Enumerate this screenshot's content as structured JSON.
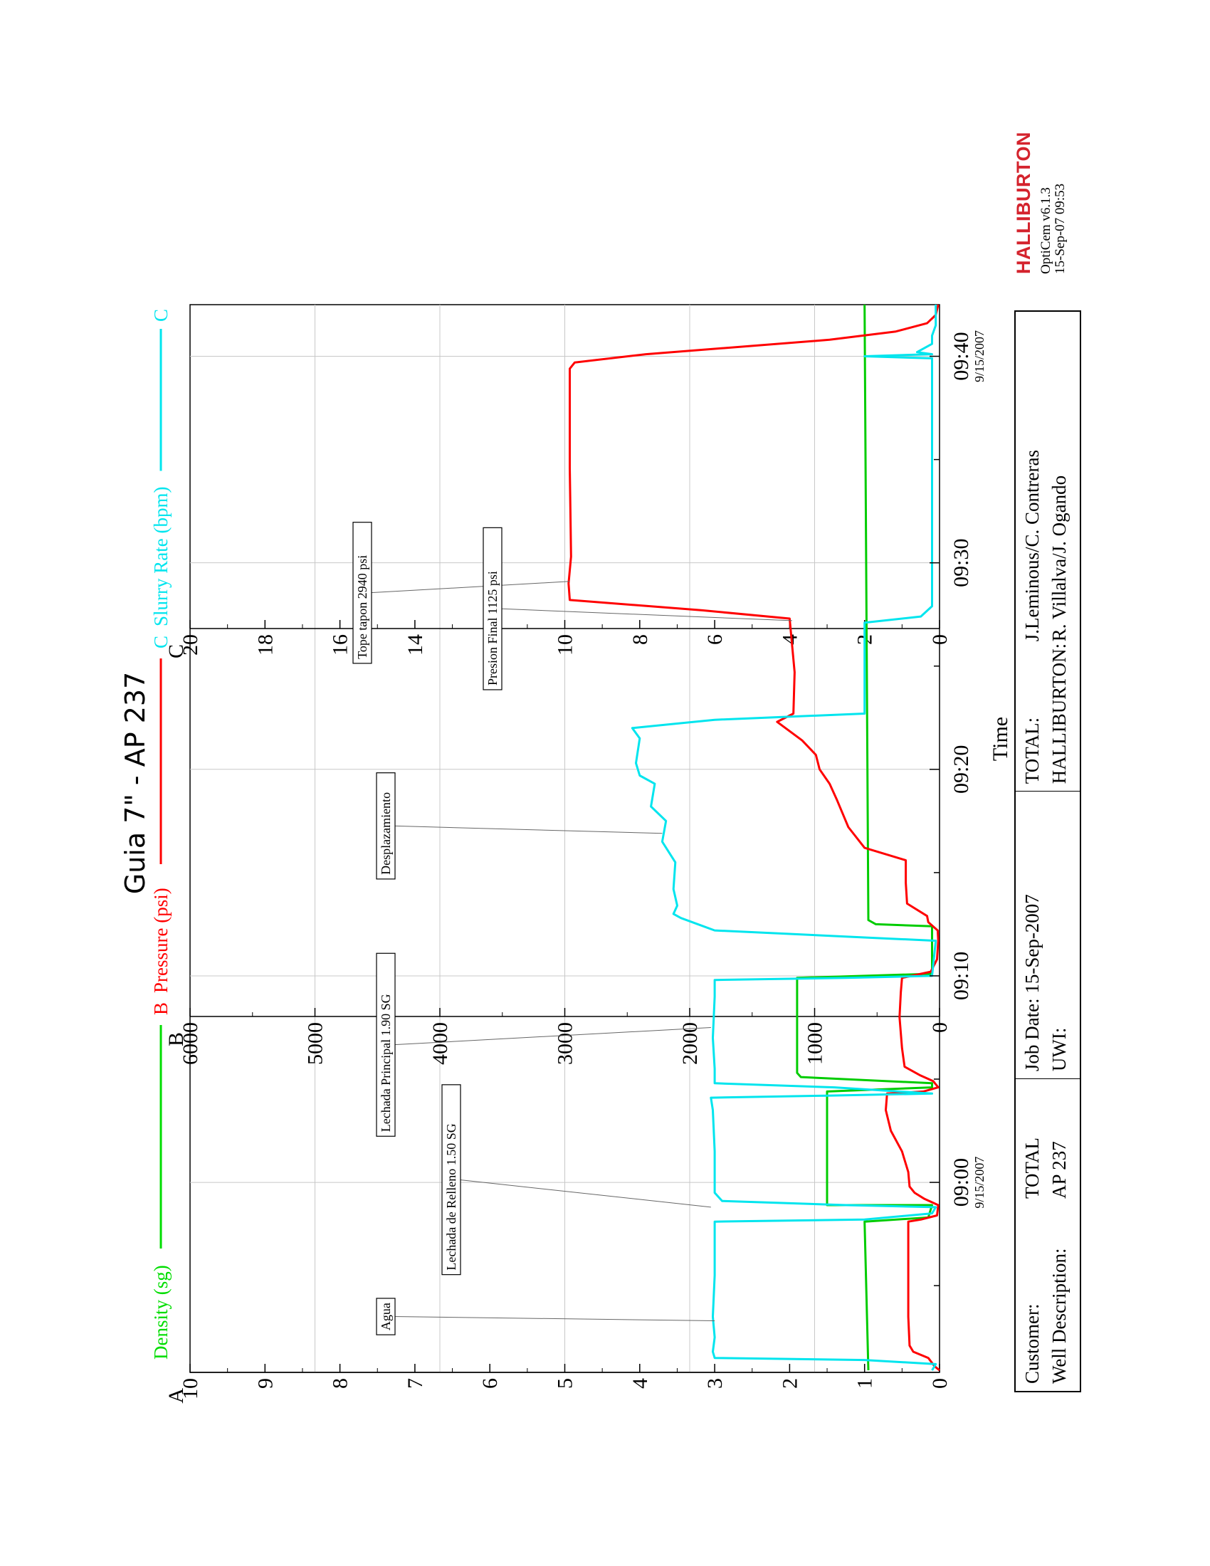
{
  "chart_data": {
    "type": "line",
    "title": "Guia 7\" - AP 237",
    "xlabel": "Time",
    "x_ticks": [
      {
        "label": "09:00",
        "sub": "9/15/2007",
        "min": 0
      },
      {
        "label": "09:10",
        "sub": "",
        "min": 10
      },
      {
        "label": "09:20",
        "sub": "",
        "min": 20
      },
      {
        "label": "09:30",
        "sub": "",
        "min": 30
      },
      {
        "label": "09:40",
        "sub": "9/15/2007",
        "min": 40
      }
    ],
    "xlim_minutes": [
      -9.2,
      42.5
    ],
    "axes": [
      {
        "letter": "A",
        "name": "Density (sg)",
        "color": "#00dd00",
        "range": [
          0,
          10
        ],
        "ticks": [
          "0",
          "1",
          "2",
          "3",
          "4",
          "5",
          "6",
          "7",
          "8",
          "9",
          "10"
        ]
      },
      {
        "letter": "B",
        "name": "Pressure (psi)",
        "color": "#ff0000",
        "range": [
          0,
          6000
        ],
        "ticks": [
          "0",
          "1000",
          "2000",
          "3000",
          "4000",
          "5000",
          "6000"
        ]
      },
      {
        "letter": "C",
        "name": "Slurry Rate (bpm)",
        "color": "#00e5ee",
        "range": [
          0,
          20
        ],
        "ticks": [
          "0",
          "2",
          "4",
          "6",
          "8",
          "10",
          "12",
          "14",
          "16",
          "18",
          "20"
        ]
      }
    ],
    "series": [
      {
        "name": "Density (sg)",
        "axis": "A",
        "color": "#00cc00",
        "points": [
          [
            -9.1,
            0.95
          ],
          [
            -1.9,
            1.0
          ],
          [
            -1.7,
            0.15
          ],
          [
            -1.1,
            0.1
          ],
          [
            -1.1,
            1.5
          ],
          [
            -0.6,
            1.5
          ],
          [
            4.4,
            1.5
          ],
          [
            4.6,
            0.1
          ],
          [
            4.8,
            0.1
          ],
          [
            5.1,
            1.85
          ],
          [
            5.3,
            1.9
          ],
          [
            9.9,
            1.9
          ],
          [
            10.1,
            0.1
          ],
          [
            12.4,
            0.1
          ],
          [
            12.5,
            0.85
          ],
          [
            12.7,
            0.95
          ],
          [
            42.5,
            1.0
          ]
        ]
      },
      {
        "name": "Pressure (psi)",
        "axis": "B",
        "color": "#ff0000",
        "points": [
          [
            -9.1,
            0
          ],
          [
            -8.9,
            40
          ],
          [
            -8.5,
            90
          ],
          [
            -8.2,
            210
          ],
          [
            -7.9,
            240
          ],
          [
            -6.5,
            250
          ],
          [
            -4.2,
            250
          ],
          [
            -3.5,
            250
          ],
          [
            -1.9,
            250
          ],
          [
            -1.8,
            150
          ],
          [
            -1.6,
            20
          ],
          [
            -1.1,
            10
          ],
          [
            -0.8,
            120
          ],
          [
            -0.5,
            200
          ],
          [
            -0.2,
            240
          ],
          [
            0.5,
            250
          ],
          [
            1.5,
            300
          ],
          [
            2.5,
            390
          ],
          [
            3.5,
            430
          ],
          [
            4.3,
            420
          ],
          [
            4.4,
            130
          ],
          [
            4.6,
            10
          ],
          [
            4.9,
            50
          ],
          [
            5.2,
            160
          ],
          [
            5.6,
            280
          ],
          [
            6.5,
            300
          ],
          [
            8.0,
            320
          ],
          [
            9.2,
            310
          ],
          [
            9.9,
            300
          ],
          [
            10.2,
            70
          ],
          [
            10.8,
            20
          ],
          [
            11.7,
            10
          ],
          [
            12.2,
            15
          ],
          [
            12.6,
            90
          ],
          [
            12.9,
            100
          ],
          [
            13.5,
            260
          ],
          [
            14.5,
            270
          ],
          [
            15.6,
            270
          ],
          [
            16.2,
            600
          ],
          [
            17.2,
            730
          ],
          [
            18.5,
            820
          ],
          [
            19.3,
            880
          ],
          [
            20.0,
            960
          ],
          [
            20.7,
            990
          ],
          [
            21.4,
            1100
          ],
          [
            22.3,
            1300
          ],
          [
            22.7,
            1170
          ],
          [
            24.7,
            1160
          ],
          [
            27.3,
            1200
          ],
          [
            27.7,
            1900
          ],
          [
            28.2,
            2960
          ],
          [
            29.0,
            2970
          ],
          [
            30.3,
            2950
          ],
          [
            32.5,
            2955
          ],
          [
            34.6,
            2960
          ],
          [
            35.0,
            2960
          ],
          [
            37.2,
            2960
          ],
          [
            39.4,
            2960
          ],
          [
            39.7,
            2920
          ],
          [
            40.1,
            2350
          ],
          [
            40.8,
            880
          ],
          [
            41.2,
            350
          ],
          [
            41.6,
            100
          ],
          [
            42.0,
            30
          ],
          [
            42.5,
            10
          ]
        ]
      },
      {
        "name": "Slurry Rate (bpm)",
        "axis": "C",
        "color": "#00e5ee",
        "points": [
          [
            -9.1,
            0.2
          ],
          [
            -8.8,
            0.1
          ],
          [
            -8.6,
            2.0
          ],
          [
            -8.5,
            6.0
          ],
          [
            -8.2,
            6.05
          ],
          [
            -7.5,
            6.0
          ],
          [
            -6.5,
            6.05
          ],
          [
            -4.5,
            6.0
          ],
          [
            -3.0,
            6.0
          ],
          [
            -1.9,
            6.0
          ],
          [
            -1.8,
            2.0
          ],
          [
            -1.5,
            0.2
          ],
          [
            -1.2,
            0.1
          ],
          [
            -1.1,
            2.5
          ],
          [
            -0.9,
            5.8
          ],
          [
            -0.5,
            6.0
          ],
          [
            1.5,
            6.0
          ],
          [
            3.5,
            6.05
          ],
          [
            4.1,
            6.1
          ],
          [
            4.2,
            3.0
          ],
          [
            4.3,
            0.2
          ],
          [
            4.6,
            2.8
          ],
          [
            4.8,
            6.0
          ],
          [
            5.5,
            6.0
          ],
          [
            7.0,
            6.05
          ],
          [
            9.0,
            6.0
          ],
          [
            9.8,
            6.0
          ],
          [
            9.9,
            2.5
          ],
          [
            10.0,
            0.2
          ],
          [
            11.7,
            0.1
          ],
          [
            11.8,
            1.3
          ],
          [
            12.2,
            6.0
          ],
          [
            12.4,
            6.3
          ],
          [
            12.8,
            6.9
          ],
          [
            13.0,
            7.1
          ],
          [
            13.4,
            7.0
          ],
          [
            14.2,
            7.1
          ],
          [
            15.5,
            7.05
          ],
          [
            16.5,
            7.4
          ],
          [
            17.5,
            7.3
          ],
          [
            18.2,
            7.7
          ],
          [
            19.3,
            7.6
          ],
          [
            19.7,
            8.0
          ],
          [
            20.3,
            8.1
          ],
          [
            21.5,
            8.0
          ],
          [
            22.0,
            8.2
          ],
          [
            22.4,
            6.0
          ],
          [
            22.7,
            2.0
          ],
          [
            25.5,
            2.0
          ],
          [
            27.1,
            2.0
          ],
          [
            27.4,
            0.5
          ],
          [
            27.9,
            0.2
          ],
          [
            28.6,
            0.2
          ],
          [
            39.9,
            0.2
          ],
          [
            40.0,
            2.0
          ],
          [
            40.1,
            0.2
          ],
          [
            40.2,
            0.6
          ],
          [
            40.6,
            0.2
          ],
          [
            41.0,
            0.2
          ],
          [
            41.5,
            0.1
          ],
          [
            42.5,
            0.1
          ]
        ]
      }
    ],
    "annotations": [
      {
        "text": "Agua",
        "x_min": -6.7,
        "axis": "A",
        "value": 3.0
      },
      {
        "text": "Lechada de Relleno 1.50 SG",
        "x_min": -1.2,
        "axis": "A",
        "value": 3.05
      },
      {
        "text": "Lechada Principal 1.90 SG",
        "x_min": 7.5,
        "axis": "A",
        "value": 3.05
      },
      {
        "text": "Desplazamiento",
        "x_min": 16.9,
        "axis": "A",
        "value": 3.7
      },
      {
        "text": "Tope tapon 2940 psi",
        "x_min": 29.1,
        "axis": "B",
        "value": 2960
      },
      {
        "text": "Presion Final 1125 psi",
        "x_min": 27.2,
        "axis": "B",
        "value": 1180
      }
    ],
    "grid": true,
    "legend": "top"
  },
  "info": {
    "customer_label": "Customer:",
    "customer_value": "TOTAL",
    "well_label": "Well Description:",
    "well_value": "AP 237",
    "job_date_label": "Job Date:",
    "job_date_value": "15-Sep-2007",
    "uwi_label": "UWI:",
    "uwi_value": "",
    "total_label": "TOTAL:",
    "total_value": "J.Leminous/C. Contreras",
    "halliburton_label": "HALLIBURTON:",
    "halliburton_value": "R. Villalva/J. Ogando"
  },
  "brand": {
    "name": "HALLIBURTON",
    "software": "OptiCem v6.1.3",
    "timestamp": "15-Sep-07 09:53"
  }
}
